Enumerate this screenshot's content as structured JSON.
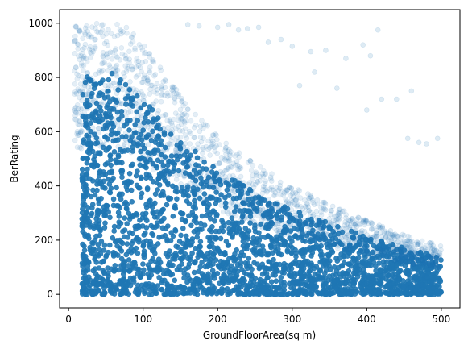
{
  "chart_data": {
    "type": "scatter",
    "title": "",
    "xlabel": "GroundFloorArea(sq m)",
    "ylabel": "BerRating",
    "xlim": [
      -12,
      525
    ],
    "ylim": [
      -50,
      1050
    ],
    "x_ticks": [
      0,
      100,
      200,
      300,
      400,
      500
    ],
    "y_ticks": [
      0,
      200,
      400,
      600,
      800,
      1000
    ],
    "grid": false,
    "legend": "none",
    "marker_color": "#1f77b4",
    "marker_alpha": 0.12,
    "distribution": {
      "description_points": [
        {
          "x": 10,
          "y": 970
        },
        {
          "x": 60,
          "y": 1000
        },
        {
          "x": 100,
          "y": 880
        },
        {
          "x": 150,
          "y": 700
        },
        {
          "x": 200,
          "y": 560
        },
        {
          "x": 250,
          "y": 460
        },
        {
          "x": 300,
          "y": 380
        },
        {
          "x": 350,
          "y": 320
        },
        {
          "x": 400,
          "y": 260
        },
        {
          "x": 450,
          "y": 210
        },
        {
          "x": 500,
          "y": 170
        }
      ],
      "x_range": [
        5,
        500
      ],
      "y_range": [
        0,
        1000
      ]
    },
    "outliers": [
      {
        "x": 160,
        "y": 995
      },
      {
        "x": 175,
        "y": 990
      },
      {
        "x": 200,
        "y": 985
      },
      {
        "x": 215,
        "y": 995
      },
      {
        "x": 228,
        "y": 975
      },
      {
        "x": 240,
        "y": 980
      },
      {
        "x": 255,
        "y": 985
      },
      {
        "x": 268,
        "y": 930
      },
      {
        "x": 285,
        "y": 940
      },
      {
        "x": 300,
        "y": 915
      },
      {
        "x": 325,
        "y": 895
      },
      {
        "x": 345,
        "y": 900
      },
      {
        "x": 395,
        "y": 920
      },
      {
        "x": 415,
        "y": 975
      },
      {
        "x": 405,
        "y": 880
      },
      {
        "x": 372,
        "y": 870
      },
      {
        "x": 310,
        "y": 770
      },
      {
        "x": 330,
        "y": 820
      },
      {
        "x": 360,
        "y": 760
      },
      {
        "x": 420,
        "y": 720
      },
      {
        "x": 440,
        "y": 720
      },
      {
        "x": 460,
        "y": 750
      },
      {
        "x": 480,
        "y": 555
      },
      {
        "x": 495,
        "y": 575
      },
      {
        "x": 470,
        "y": 560
      },
      {
        "x": 455,
        "y": 575
      },
      {
        "x": 400,
        "y": 680
      }
    ]
  }
}
